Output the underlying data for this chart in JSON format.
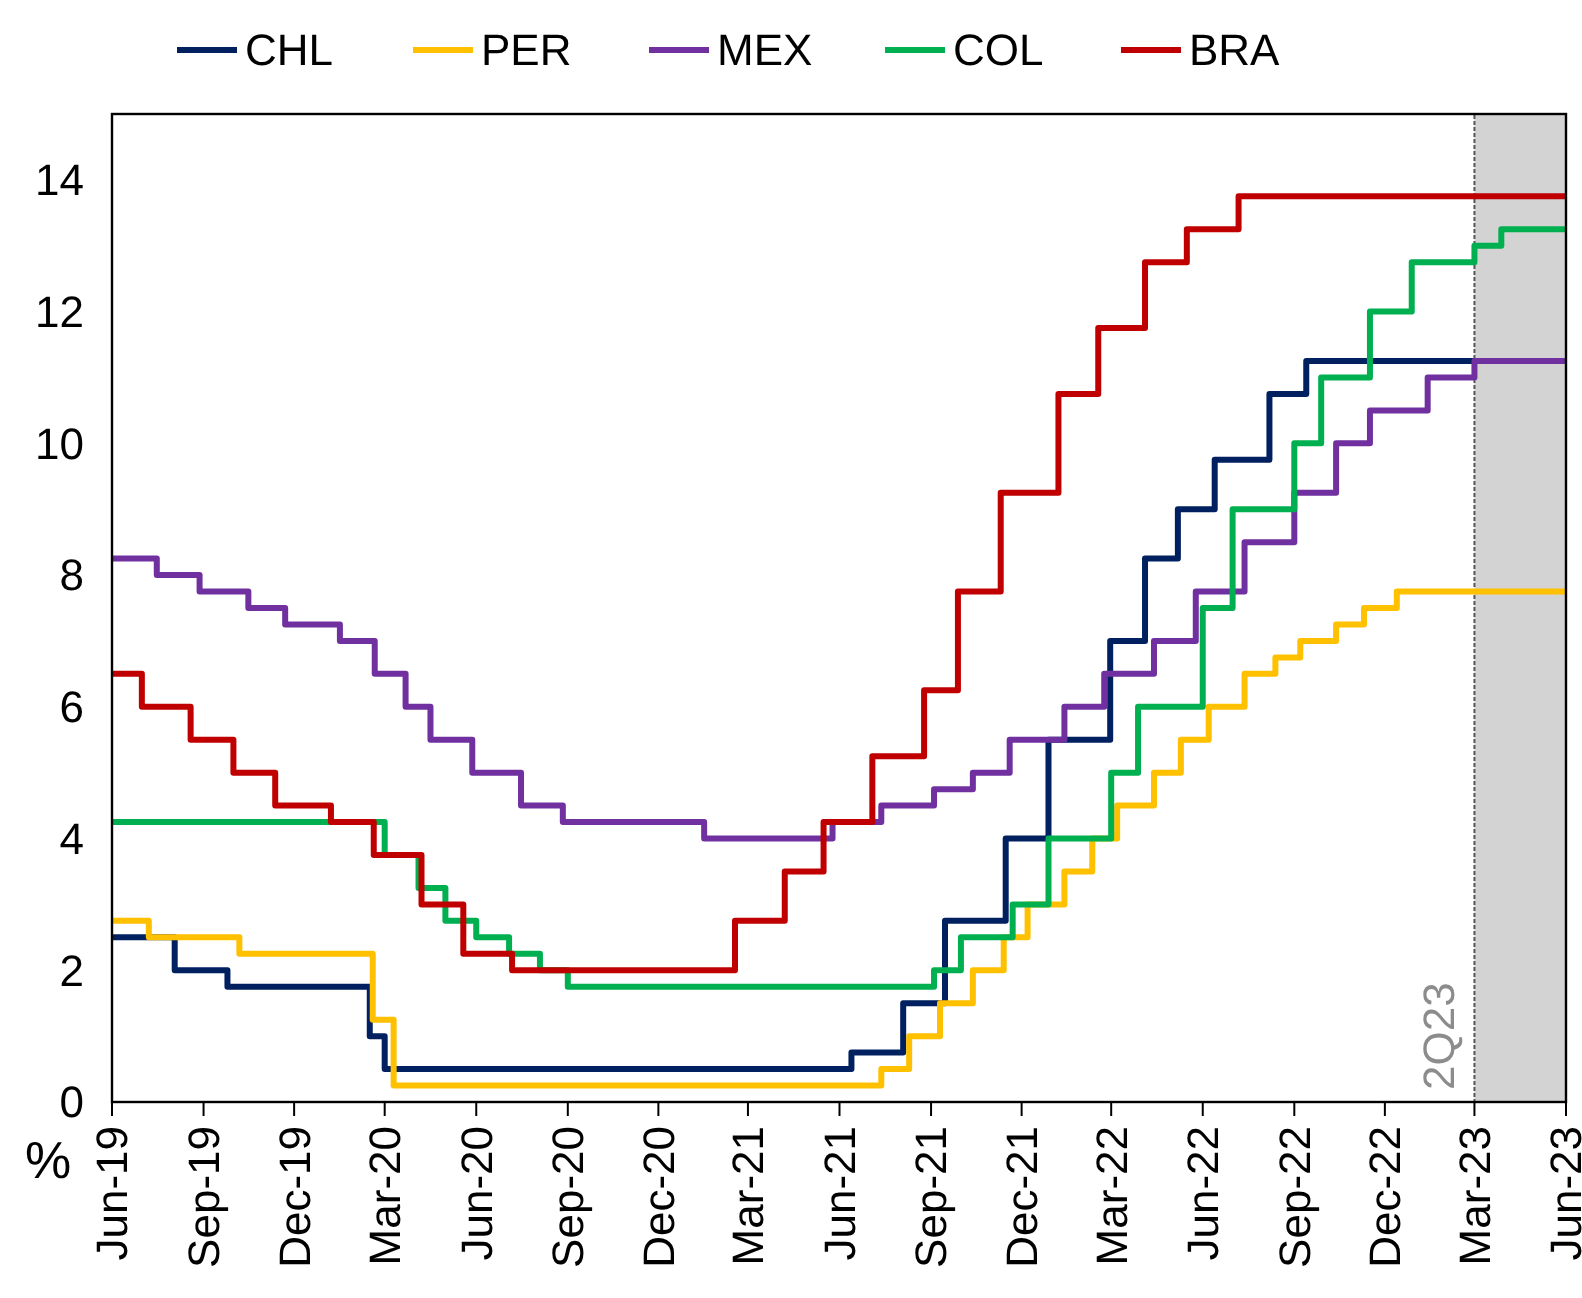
{
  "chart_data": {
    "type": "step",
    "ylabel": "%",
    "legend": "top",
    "grid": false,
    "xlim": [
      "2019-06-01",
      "2023-06-01"
    ],
    "ylim": [
      0,
      15
    ],
    "yticks": [
      0,
      2,
      4,
      6,
      8,
      10,
      12,
      14
    ],
    "xticks": [
      {
        "value": "2019-06-01",
        "label": "Jun-19"
      },
      {
        "value": "2019-09-01",
        "label": "Sep-19"
      },
      {
        "value": "2019-12-01",
        "label": "Dec-19"
      },
      {
        "value": "2020-03-01",
        "label": "Mar-20"
      },
      {
        "value": "2020-06-01",
        "label": "Jun-20"
      },
      {
        "value": "2020-09-01",
        "label": "Sep-20"
      },
      {
        "value": "2020-12-01",
        "label": "Dec-20"
      },
      {
        "value": "2021-03-01",
        "label": "Mar-21"
      },
      {
        "value": "2021-06-01",
        "label": "Jun-21"
      },
      {
        "value": "2021-09-01",
        "label": "Sep-21"
      },
      {
        "value": "2021-12-01",
        "label": "Dec-21"
      },
      {
        "value": "2022-03-01",
        "label": "Mar-22"
      },
      {
        "value": "2022-06-01",
        "label": "Jun-22"
      },
      {
        "value": "2022-09-01",
        "label": "Sep-22"
      },
      {
        "value": "2022-12-01",
        "label": "Dec-22"
      },
      {
        "value": "2023-03-01",
        "label": "Mar-23"
      },
      {
        "value": "2023-06-01",
        "label": "Jun-23"
      }
    ],
    "bands": [
      {
        "axis": "x",
        "from": "2023-03-01",
        "to": "2023-06-01",
        "label": "2Q23",
        "color": "#d3d3d3"
      }
    ],
    "series": [
      {
        "name": "CHL",
        "color": "#002060",
        "x": [
          "2019-06-01",
          "2019-08-03",
          "2019-09-25",
          "2020-02-15",
          "2020-03-01",
          "2021-06-13",
          "2021-08-04",
          "2021-09-15",
          "2021-11-15",
          "2021-12-28",
          "2022-02-28",
          "2022-04-04",
          "2022-05-07",
          "2022-06-13",
          "2022-08-07",
          "2022-09-13",
          "2023-06-01"
        ],
        "values": [
          2.5,
          2.0,
          1.75,
          1.0,
          0.5,
          0.75,
          1.5,
          2.75,
          4.0,
          5.5,
          7.0,
          8.25,
          9.0,
          9.75,
          10.75,
          11.25,
          11.25
        ]
      },
      {
        "name": "PER",
        "color": "#ffc000",
        "x": [
          "2019-06-01",
          "2019-07-08",
          "2019-10-07",
          "2020-02-18",
          "2020-03-10",
          "2021-07-13",
          "2021-08-10",
          "2021-09-10",
          "2021-10-13",
          "2021-11-13",
          "2021-12-07",
          "2022-01-13",
          "2022-02-10",
          "2022-03-07",
          "2022-04-13",
          "2022-05-10",
          "2022-06-07",
          "2022-07-13",
          "2022-08-13",
          "2022-09-07",
          "2022-10-13",
          "2022-11-10",
          "2022-12-13",
          "2023-06-01"
        ],
        "values": [
          2.75,
          2.5,
          2.25,
          1.25,
          0.25,
          0.5,
          1.0,
          1.5,
          2.0,
          2.5,
          3.0,
          3.5,
          4.0,
          4.5,
          5.0,
          5.5,
          6.0,
          6.5,
          6.75,
          7.0,
          7.25,
          7.5,
          7.75,
          7.75
        ]
      },
      {
        "name": "MEX",
        "color": "#7030a0",
        "x": [
          "2019-06-01",
          "2019-07-16",
          "2019-08-28",
          "2019-10-16",
          "2019-11-22",
          "2020-01-16",
          "2020-02-20",
          "2020-03-22",
          "2020-04-16",
          "2020-05-28",
          "2020-07-16",
          "2020-08-27",
          "2021-01-16",
          "2021-05-25",
          "2021-07-13",
          "2021-09-04",
          "2021-10-13",
          "2021-11-19",
          "2022-01-13",
          "2022-02-22",
          "2022-04-13",
          "2022-05-25",
          "2022-07-13",
          "2022-09-01",
          "2022-10-13",
          "2022-11-16",
          "2023-01-13",
          "2023-03-01",
          "2023-06-01"
        ],
        "values": [
          8.25,
          8.0,
          7.75,
          7.5,
          7.25,
          7.0,
          6.5,
          6.0,
          5.5,
          5.0,
          4.5,
          4.25,
          4.0,
          4.25,
          4.5,
          4.75,
          5.0,
          5.5,
          6.0,
          6.5,
          7.0,
          7.75,
          8.5,
          9.25,
          10.0,
          10.5,
          11.0,
          11.25,
          11.25
        ]
      },
      {
        "name": "COL",
        "color": "#00b050",
        "x": [
          "2019-06-01",
          "2020-03-01",
          "2020-04-04",
          "2020-05-01",
          "2020-06-01",
          "2020-07-04",
          "2020-08-04",
          "2020-09-01",
          "2021-09-04",
          "2021-10-01",
          "2021-11-22",
          "2021-12-28",
          "2022-03-01",
          "2022-03-28",
          "2022-06-01",
          "2022-07-01",
          "2022-09-01",
          "2022-09-28",
          "2022-11-16",
          "2022-12-28",
          "2023-03-01",
          "2023-03-28",
          "2023-06-01"
        ],
        "values": [
          4.25,
          3.75,
          3.25,
          2.75,
          2.5,
          2.25,
          2.0,
          1.75,
          2.0,
          2.5,
          3.0,
          4.0,
          5.0,
          6.0,
          7.5,
          9.0,
          10.0,
          11.0,
          12.0,
          12.75,
          13.0,
          13.25,
          13.25
        ]
      },
      {
        "name": "BRA",
        "color": "#c00000",
        "x": [
          "2019-06-01",
          "2019-07-01",
          "2019-08-19",
          "2019-10-01",
          "2019-11-12",
          "2020-01-07",
          "2020-02-19",
          "2020-04-07",
          "2020-05-19",
          "2020-07-07",
          "2021-02-16",
          "2021-04-07",
          "2021-05-16",
          "2021-07-04",
          "2021-08-25",
          "2021-09-28",
          "2021-11-10",
          "2022-01-07",
          "2022-02-16",
          "2022-04-04",
          "2022-05-16",
          "2022-07-07",
          "2023-06-01"
        ],
        "values": [
          6.5,
          6.0,
          5.5,
          5.0,
          4.5,
          4.25,
          3.75,
          3.0,
          2.25,
          2.0,
          2.75,
          3.5,
          4.25,
          5.25,
          6.25,
          7.75,
          9.25,
          10.75,
          11.75,
          12.75,
          13.25,
          13.75,
          13.75
        ]
      }
    ]
  }
}
